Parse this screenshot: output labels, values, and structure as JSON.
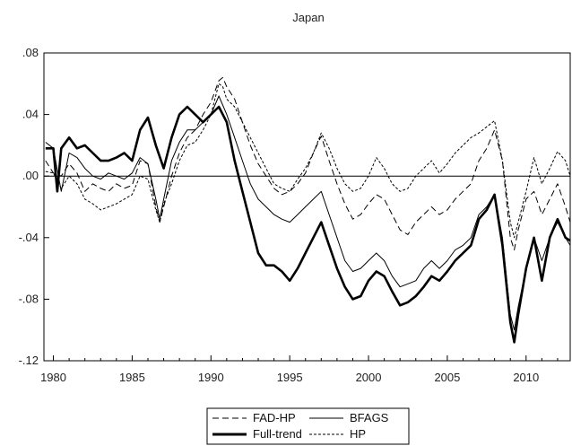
{
  "chart_data": {
    "type": "line",
    "title": "Japan",
    "xlabel": "",
    "ylabel": "",
    "xlim": [
      1979.4,
      2012.8
    ],
    "ylim": [
      -0.12,
      0.08
    ],
    "x_ticks": [
      1980,
      1985,
      1990,
      1995,
      2000,
      2005,
      2010
    ],
    "x_tick_labels": [
      "1980",
      "1985",
      "1990",
      "1995",
      "2000",
      "2005",
      "2010"
    ],
    "y_ticks": [
      0.08,
      0.04,
      0.0,
      -0.04,
      -0.08,
      -0.12
    ],
    "y_tick_labels": [
      ".08",
      ".04",
      ".00",
      "-.04",
      "-.08",
      "-.12"
    ],
    "zero_line": true,
    "legend_position": "bottom-center",
    "series": [
      {
        "name": "FAD-HP",
        "style": "dashed",
        "points": [
          [
            1979.5,
            0.01
          ],
          [
            1980.0,
            0.002
          ],
          [
            1980.5,
            0.0
          ],
          [
            1981.0,
            0.008
          ],
          [
            1981.5,
            0.002
          ],
          [
            1982.0,
            -0.01
          ],
          [
            1982.5,
            -0.005
          ],
          [
            1983.0,
            -0.008
          ],
          [
            1983.5,
            -0.01
          ],
          [
            1984.0,
            -0.005
          ],
          [
            1984.5,
            -0.008
          ],
          [
            1985.0,
            -0.006
          ],
          [
            1985.5,
            0.01
          ],
          [
            1986.0,
            0.008
          ],
          [
            1986.5,
            -0.02
          ],
          [
            1986.75,
            -0.03
          ],
          [
            1987.0,
            -0.02
          ],
          [
            1987.5,
            0.0
          ],
          [
            1988.0,
            0.015
          ],
          [
            1988.5,
            0.025
          ],
          [
            1989.0,
            0.03
          ],
          [
            1989.5,
            0.04
          ],
          [
            1990.0,
            0.048
          ],
          [
            1990.5,
            0.062
          ],
          [
            1990.75,
            0.064
          ],
          [
            1991.0,
            0.058
          ],
          [
            1991.5,
            0.05
          ],
          [
            1992.0,
            0.035
          ],
          [
            1992.5,
            0.02
          ],
          [
            1993.0,
            0.008
          ],
          [
            1993.5,
            0.0
          ],
          [
            1994.0,
            -0.008
          ],
          [
            1994.5,
            -0.012
          ],
          [
            1995.0,
            -0.01
          ],
          [
            1995.5,
            -0.005
          ],
          [
            1996.0,
            0.002
          ],
          [
            1996.5,
            0.015
          ],
          [
            1997.0,
            0.026
          ],
          [
            1997.5,
            0.01
          ],
          [
            1998.0,
            -0.005
          ],
          [
            1998.5,
            -0.018
          ],
          [
            1999.0,
            -0.028
          ],
          [
            1999.5,
            -0.025
          ],
          [
            2000.0,
            -0.018
          ],
          [
            2000.5,
            -0.012
          ],
          [
            2001.0,
            -0.015
          ],
          [
            2001.5,
            -0.025
          ],
          [
            2002.0,
            -0.035
          ],
          [
            2002.5,
            -0.038
          ],
          [
            2003.0,
            -0.03
          ],
          [
            2003.5,
            -0.025
          ],
          [
            2004.0,
            -0.02
          ],
          [
            2004.5,
            -0.025
          ],
          [
            2005.0,
            -0.022
          ],
          [
            2005.5,
            -0.015
          ],
          [
            2006.0,
            -0.01
          ],
          [
            2006.5,
            -0.005
          ],
          [
            2007.0,
            0.01
          ],
          [
            2007.5,
            0.018
          ],
          [
            2008.0,
            0.03
          ],
          [
            2008.5,
            0.01
          ],
          [
            2009.0,
            -0.04
          ],
          [
            2009.25,
            -0.048
          ],
          [
            2009.5,
            -0.035
          ],
          [
            2010.0,
            -0.015
          ],
          [
            2010.5,
            -0.01
          ],
          [
            2011.0,
            -0.025
          ],
          [
            2011.5,
            -0.015
          ],
          [
            2012.0,
            -0.005
          ],
          [
            2012.5,
            -0.02
          ],
          [
            2012.8,
            -0.03
          ]
        ]
      },
      {
        "name": "BFAGS",
        "style": "solid-thin",
        "points": [
          [
            1979.5,
            0.022
          ],
          [
            1980.0,
            0.018
          ],
          [
            1980.5,
            -0.01
          ],
          [
            1981.0,
            0.015
          ],
          [
            1981.5,
            0.012
          ],
          [
            1982.0,
            0.005
          ],
          [
            1982.5,
            0.0
          ],
          [
            1983.0,
            -0.002
          ],
          [
            1983.5,
            0.002
          ],
          [
            1984.0,
            0.0
          ],
          [
            1984.5,
            -0.002
          ],
          [
            1985.0,
            0.002
          ],
          [
            1985.5,
            0.012
          ],
          [
            1986.0,
            0.008
          ],
          [
            1986.5,
            -0.015
          ],
          [
            1986.75,
            -0.028
          ],
          [
            1987.0,
            -0.015
          ],
          [
            1987.5,
            0.01
          ],
          [
            1988.0,
            0.022
          ],
          [
            1988.5,
            0.03
          ],
          [
            1989.0,
            0.03
          ],
          [
            1989.5,
            0.035
          ],
          [
            1990.0,
            0.04
          ],
          [
            1990.5,
            0.052
          ],
          [
            1991.0,
            0.04
          ],
          [
            1991.5,
            0.025
          ],
          [
            1992.0,
            0.01
          ],
          [
            1992.5,
            -0.005
          ],
          [
            1993.0,
            -0.015
          ],
          [
            1993.5,
            -0.02
          ],
          [
            1994.0,
            -0.025
          ],
          [
            1994.5,
            -0.028
          ],
          [
            1995.0,
            -0.03
          ],
          [
            1995.5,
            -0.025
          ],
          [
            1996.0,
            -0.02
          ],
          [
            1996.5,
            -0.015
          ],
          [
            1997.0,
            -0.01
          ],
          [
            1997.5,
            -0.025
          ],
          [
            1998.0,
            -0.04
          ],
          [
            1998.5,
            -0.055
          ],
          [
            1999.0,
            -0.062
          ],
          [
            1999.5,
            -0.06
          ],
          [
            2000.0,
            -0.055
          ],
          [
            2000.5,
            -0.05
          ],
          [
            2001.0,
            -0.055
          ],
          [
            2001.5,
            -0.065
          ],
          [
            2002.0,
            -0.072
          ],
          [
            2002.5,
            -0.07
          ],
          [
            2003.0,
            -0.068
          ],
          [
            2003.5,
            -0.06
          ],
          [
            2004.0,
            -0.055
          ],
          [
            2004.5,
            -0.06
          ],
          [
            2005.0,
            -0.055
          ],
          [
            2005.5,
            -0.048
          ],
          [
            2006.0,
            -0.045
          ],
          [
            2006.5,
            -0.04
          ],
          [
            2007.0,
            -0.025
          ],
          [
            2007.5,
            -0.02
          ],
          [
            2008.0,
            -0.012
          ],
          [
            2008.5,
            -0.04
          ],
          [
            2009.0,
            -0.09
          ],
          [
            2009.25,
            -0.1
          ],
          [
            2009.5,
            -0.085
          ],
          [
            2010.0,
            -0.06
          ],
          [
            2010.5,
            -0.04
          ],
          [
            2011.0,
            -0.055
          ],
          [
            2011.5,
            -0.04
          ],
          [
            2012.0,
            -0.03
          ],
          [
            2012.5,
            -0.04
          ],
          [
            2012.8,
            -0.045
          ]
        ]
      },
      {
        "name": "Full-trend",
        "style": "solid-thick",
        "points": [
          [
            1979.5,
            0.018
          ],
          [
            1980.0,
            0.018
          ],
          [
            1980.25,
            -0.01
          ],
          [
            1980.5,
            0.018
          ],
          [
            1981.0,
            0.025
          ],
          [
            1981.5,
            0.018
          ],
          [
            1982.0,
            0.02
          ],
          [
            1982.5,
            0.015
          ],
          [
            1983.0,
            0.01
          ],
          [
            1983.5,
            0.01
          ],
          [
            1984.0,
            0.012
          ],
          [
            1984.5,
            0.015
          ],
          [
            1985.0,
            0.01
          ],
          [
            1985.5,
            0.03
          ],
          [
            1986.0,
            0.038
          ],
          [
            1986.5,
            0.02
          ],
          [
            1987.0,
            0.005
          ],
          [
            1987.5,
            0.025
          ],
          [
            1988.0,
            0.04
          ],
          [
            1988.5,
            0.045
          ],
          [
            1989.0,
            0.04
          ],
          [
            1989.5,
            0.035
          ],
          [
            1990.0,
            0.04
          ],
          [
            1990.5,
            0.045
          ],
          [
            1991.0,
            0.035
          ],
          [
            1991.5,
            0.01
          ],
          [
            1992.0,
            -0.01
          ],
          [
            1992.5,
            -0.03
          ],
          [
            1993.0,
            -0.05
          ],
          [
            1993.5,
            -0.058
          ],
          [
            1994.0,
            -0.058
          ],
          [
            1994.5,
            -0.062
          ],
          [
            1995.0,
            -0.068
          ],
          [
            1995.5,
            -0.06
          ],
          [
            1996.0,
            -0.05
          ],
          [
            1996.5,
            -0.04
          ],
          [
            1997.0,
            -0.03
          ],
          [
            1997.5,
            -0.045
          ],
          [
            1998.0,
            -0.06
          ],
          [
            1998.5,
            -0.072
          ],
          [
            1999.0,
            -0.08
          ],
          [
            1999.5,
            -0.078
          ],
          [
            2000.0,
            -0.068
          ],
          [
            2000.5,
            -0.062
          ],
          [
            2001.0,
            -0.065
          ],
          [
            2001.5,
            -0.075
          ],
          [
            2002.0,
            -0.084
          ],
          [
            2002.5,
            -0.082
          ],
          [
            2003.0,
            -0.078
          ],
          [
            2003.5,
            -0.072
          ],
          [
            2004.0,
            -0.065
          ],
          [
            2004.5,
            -0.068
          ],
          [
            2005.0,
            -0.062
          ],
          [
            2005.5,
            -0.055
          ],
          [
            2006.0,
            -0.05
          ],
          [
            2006.5,
            -0.045
          ],
          [
            2007.0,
            -0.028
          ],
          [
            2007.5,
            -0.022
          ],
          [
            2008.0,
            -0.012
          ],
          [
            2008.5,
            -0.045
          ],
          [
            2009.0,
            -0.095
          ],
          [
            2009.25,
            -0.108
          ],
          [
            2009.5,
            -0.09
          ],
          [
            2010.0,
            -0.06
          ],
          [
            2010.5,
            -0.04
          ],
          [
            2011.0,
            -0.068
          ],
          [
            2011.5,
            -0.04
          ],
          [
            2012.0,
            -0.028
          ],
          [
            2012.5,
            -0.04
          ],
          [
            2012.8,
            -0.042
          ]
        ]
      },
      {
        "name": "HP",
        "style": "dotted-dash",
        "points": [
          [
            1979.5,
            0.003
          ],
          [
            1980.0,
            0.002
          ],
          [
            1980.5,
            -0.008
          ],
          [
            1981.0,
            0.0
          ],
          [
            1981.5,
            -0.005
          ],
          [
            1982.0,
            -0.015
          ],
          [
            1982.5,
            -0.018
          ],
          [
            1983.0,
            -0.022
          ],
          [
            1983.5,
            -0.02
          ],
          [
            1984.0,
            -0.018
          ],
          [
            1984.5,
            -0.015
          ],
          [
            1985.0,
            -0.012
          ],
          [
            1985.5,
            0.0
          ],
          [
            1986.0,
            -0.002
          ],
          [
            1986.5,
            -0.022
          ],
          [
            1986.75,
            -0.03
          ],
          [
            1987.0,
            -0.018
          ],
          [
            1987.5,
            -0.005
          ],
          [
            1988.0,
            0.01
          ],
          [
            1988.5,
            0.02
          ],
          [
            1989.0,
            0.022
          ],
          [
            1989.5,
            0.03
          ],
          [
            1990.0,
            0.04
          ],
          [
            1990.5,
            0.06
          ],
          [
            1990.75,
            0.058
          ],
          [
            1991.0,
            0.05
          ],
          [
            1991.5,
            0.045
          ],
          [
            1992.0,
            0.035
          ],
          [
            1992.5,
            0.025
          ],
          [
            1993.0,
            0.015
          ],
          [
            1993.5,
            0.005
          ],
          [
            1994.0,
            -0.005
          ],
          [
            1994.5,
            -0.008
          ],
          [
            1995.0,
            -0.01
          ],
          [
            1995.5,
            -0.002
          ],
          [
            1996.0,
            0.005
          ],
          [
            1996.5,
            0.015
          ],
          [
            1997.0,
            0.028
          ],
          [
            1997.5,
            0.018
          ],
          [
            1998.0,
            0.005
          ],
          [
            1998.5,
            -0.005
          ],
          [
            1999.0,
            -0.01
          ],
          [
            1999.5,
            -0.008
          ],
          [
            2000.0,
            0.0
          ],
          [
            2000.5,
            0.012
          ],
          [
            2001.0,
            0.005
          ],
          [
            2001.5,
            -0.005
          ],
          [
            2002.0,
            -0.01
          ],
          [
            2002.5,
            -0.008
          ],
          [
            2003.0,
            0.0
          ],
          [
            2003.5,
            0.005
          ],
          [
            2004.0,
            0.01
          ],
          [
            2004.5,
            0.002
          ],
          [
            2005.0,
            0.008
          ],
          [
            2005.5,
            0.015
          ],
          [
            2006.0,
            0.02
          ],
          [
            2006.5,
            0.025
          ],
          [
            2007.0,
            0.028
          ],
          [
            2007.5,
            0.032
          ],
          [
            2008.0,
            0.036
          ],
          [
            2008.5,
            0.01
          ],
          [
            2009.0,
            -0.03
          ],
          [
            2009.25,
            -0.04
          ],
          [
            2009.5,
            -0.03
          ],
          [
            2010.0,
            -0.01
          ],
          [
            2010.5,
            0.012
          ],
          [
            2011.0,
            -0.005
          ],
          [
            2011.5,
            0.005
          ],
          [
            2012.0,
            0.016
          ],
          [
            2012.5,
            0.01
          ],
          [
            2012.8,
            0.0
          ]
        ]
      }
    ]
  }
}
